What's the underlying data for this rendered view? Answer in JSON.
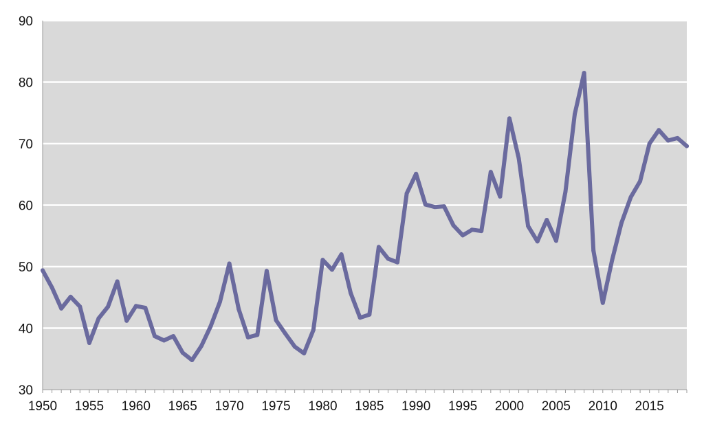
{
  "colors": {
    "plot_background": "#d9d9d9",
    "gridline": "#ffffff",
    "series_line": "#6a6a9e",
    "axis_line": "#9a9a9a"
  },
  "chart_data": {
    "type": "line",
    "title": "",
    "xlabel": "",
    "ylabel": "",
    "xlim": [
      1950,
      2019
    ],
    "ylim": [
      30,
      90
    ],
    "grid": true,
    "legend": "none",
    "x_ticks": [
      "1950",
      "1955",
      "1960",
      "1965",
      "1970",
      "1975",
      "1980",
      "1985",
      "1990",
      "1995",
      "2000",
      "2005",
      "2010",
      "2015"
    ],
    "y_ticks": [
      "30",
      "40",
      "50",
      "60",
      "70",
      "80",
      "90"
    ],
    "series": [
      {
        "x": [
          1950,
          1951,
          1952,
          1953,
          1954,
          1955,
          1956,
          1957,
          1958,
          1959,
          1960,
          1961,
          1962,
          1963,
          1964,
          1965,
          1966,
          1967,
          1968,
          1969,
          1970,
          1971,
          1972,
          1973,
          1974,
          1975,
          1976,
          1977,
          1978,
          1979,
          1980,
          1981,
          1982,
          1983,
          1984,
          1985,
          1986,
          1987,
          1988,
          1989,
          1990,
          1991,
          1992,
          1993,
          1994,
          1995,
          1996,
          1997,
          1998,
          1999,
          2000,
          2001,
          2002,
          2003,
          2004,
          2005,
          2006,
          2007,
          2008,
          2009,
          2010,
          2011,
          2012,
          2013,
          2014,
          2015,
          2016,
          2017,
          2018,
          2019
        ],
        "values": [
          49.4,
          46.6,
          43.2,
          45.1,
          43.5,
          37.6,
          41.6,
          43.5,
          47.6,
          41.2,
          43.6,
          43.3,
          38.7,
          38.0,
          38.7,
          36.0,
          34.8,
          37.1,
          40.3,
          44.3,
          50.5,
          43.1,
          38.5,
          38.9,
          49.3,
          41.3,
          39.1,
          37.0,
          35.9,
          39.7,
          51.1,
          49.5,
          52.0,
          45.7,
          41.7,
          42.2,
          53.2,
          51.3,
          50.7,
          61.9,
          65.1,
          60.1,
          59.7,
          59.8,
          56.7,
          55.1,
          56.0,
          55.8,
          65.4,
          61.4,
          74.1,
          67.6,
          56.6,
          54.1,
          57.6,
          54.2,
          62.2,
          74.8,
          81.5,
          52.6,
          44.1,
          51.1,
          57.1,
          61.3,
          63.9,
          70.0,
          72.2,
          70.5,
          70.9,
          69.6
        ]
      }
    ]
  }
}
